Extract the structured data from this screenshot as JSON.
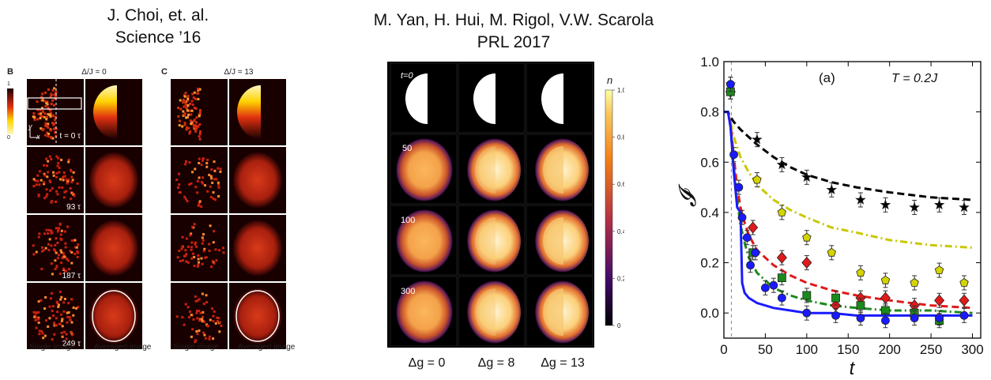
{
  "citations": {
    "left": {
      "line1": "J. Choi, et. al.",
      "line2": "Science ’16"
    },
    "middle": {
      "line1": "M. Yan, H. Hui, M.  Rigol, V.W. Scarola",
      "line2": "PRL 2017"
    }
  },
  "panel_left": {
    "label_b": "B",
    "label_c": "C",
    "header_b": "Δ/J = 0",
    "header_c": "Δ/J = 13",
    "colorbar_top": "1",
    "colorbar_bottom": "0",
    "axis_y": "y",
    "axis_x": "x",
    "times": [
      "t = 0 τ",
      "93 τ",
      "187 τ",
      "249 τ"
    ],
    "col_single": "Single image",
    "col_averaged": "Averaged image"
  },
  "panel_middle": {
    "times": [
      "t=0",
      "50",
      "100",
      "300"
    ],
    "colorbar_label": "n",
    "colorbar_ticks": [
      "1.0",
      "0.8",
      "0.6",
      "0.4",
      "0.2",
      "0"
    ],
    "columns": [
      "Δg = 0",
      "Δg = 8",
      "Δg = 13"
    ]
  },
  "chart_data": {
    "type": "line",
    "panel_label": "(a)",
    "annotation": "T = 0.2J",
    "xlabel": "t",
    "ylabel": "𝓘",
    "xlim": [
      0,
      310
    ],
    "ylim": [
      -0.1,
      1.0
    ],
    "xticks": [
      "0",
      "50",
      "100",
      "150",
      "200",
      "250",
      "300"
    ],
    "yticks": [
      "0.0",
      "0.2",
      "0.4",
      "0.6",
      "0.8",
      "1.0"
    ],
    "vline_x": 9,
    "series": [
      {
        "color": "#000000",
        "style": "dash",
        "x": [
          0,
          5,
          8,
          12,
          20,
          30,
          40,
          60,
          80,
          100,
          130,
          160,
          200,
          250,
          300
        ],
        "y": [
          0.8,
          0.8,
          0.78,
          0.76,
          0.73,
          0.7,
          0.67,
          0.62,
          0.58,
          0.55,
          0.52,
          0.5,
          0.48,
          0.46,
          0.45
        ]
      },
      {
        "color": "#c8c800",
        "style": "dashdot",
        "x": [
          0,
          5,
          8,
          12,
          20,
          30,
          40,
          60,
          80,
          100,
          130,
          160,
          200,
          250,
          300
        ],
        "y": [
          0.8,
          0.8,
          0.76,
          0.7,
          0.62,
          0.56,
          0.51,
          0.45,
          0.41,
          0.38,
          0.34,
          0.32,
          0.29,
          0.27,
          0.26
        ]
      },
      {
        "color": "#e01a1a",
        "style": "dash",
        "x": [
          0,
          5,
          8,
          12,
          16,
          20,
          25,
          30,
          40,
          60,
          80,
          100,
          130,
          160,
          200,
          250,
          300
        ],
        "y": [
          0.8,
          0.8,
          0.75,
          0.62,
          0.5,
          0.42,
          0.36,
          0.31,
          0.25,
          0.19,
          0.15,
          0.12,
          0.09,
          0.07,
          0.05,
          0.03,
          0.02
        ]
      },
      {
        "color": "#1a8a1a",
        "style": "dashdot",
        "x": [
          0,
          5,
          8,
          12,
          16,
          20,
          25,
          30,
          40,
          60,
          80,
          100,
          130,
          160,
          200,
          250,
          300
        ],
        "y": [
          0.8,
          0.8,
          0.74,
          0.58,
          0.45,
          0.35,
          0.28,
          0.22,
          0.16,
          0.1,
          0.07,
          0.05,
          0.03,
          0.02,
          0.01,
          0.01,
          0.0
        ]
      },
      {
        "color": "#1a1aff",
        "style": "solid",
        "x": [
          0,
          5,
          8,
          12,
          16,
          20,
          22,
          25,
          30,
          40,
          60,
          80,
          100,
          130,
          160,
          200,
          250,
          300
        ],
        "y": [
          0.8,
          0.8,
          0.74,
          0.56,
          0.42,
          0.4,
          0.12,
          0.08,
          0.06,
          0.04,
          0.02,
          0.01,
          0.0,
          0.0,
          -0.01,
          -0.01,
          -0.01,
          -0.01
        ]
      }
    ],
    "points": [
      {
        "color": "#000000",
        "marker": "star",
        "x": [
          8,
          40,
          70,
          100,
          130,
          165,
          195,
          230,
          260,
          290
        ],
        "y": [
          0.91,
          0.69,
          0.59,
          0.54,
          0.49,
          0.45,
          0.43,
          0.42,
          0.43,
          0.42
        ]
      },
      {
        "color": "#d4d400",
        "marker": "pentagon",
        "x": [
          8,
          40,
          70,
          100,
          130,
          165,
          195,
          230,
          260,
          290
        ],
        "y": [
          0.88,
          0.53,
          0.4,
          0.3,
          0.24,
          0.16,
          0.13,
          0.12,
          0.17,
          0.12
        ]
      },
      {
        "color": "#e01a1a",
        "marker": "diamond",
        "x": [
          8,
          35,
          70,
          100,
          135,
          165,
          195,
          230,
          260,
          290
        ],
        "y": [
          0.88,
          0.34,
          0.22,
          0.2,
          0.03,
          0.06,
          0.06,
          0.03,
          0.05,
          0.05
        ]
      },
      {
        "color": "#1a8a1a",
        "marker": "square",
        "x": [
          8,
          35,
          70,
          100,
          135,
          165,
          195,
          230,
          260
        ],
        "y": [
          0.88,
          0.24,
          0.14,
          0.07,
          0.06,
          0.03,
          0.01,
          0.0,
          -0.03
        ]
      },
      {
        "color": "#1a1aff",
        "marker": "circle",
        "x": [
          8,
          12,
          18,
          22,
          28,
          32,
          38,
          50,
          60,
          70,
          100,
          135,
          165,
          195,
          230,
          260,
          290
        ],
        "y": [
          0.91,
          0.63,
          0.5,
          0.38,
          0.3,
          0.19,
          0.24,
          0.1,
          0.11,
          0.06,
          0.0,
          -0.01,
          -0.02,
          -0.03,
          -0.02,
          -0.02,
          -0.01
        ]
      }
    ]
  }
}
